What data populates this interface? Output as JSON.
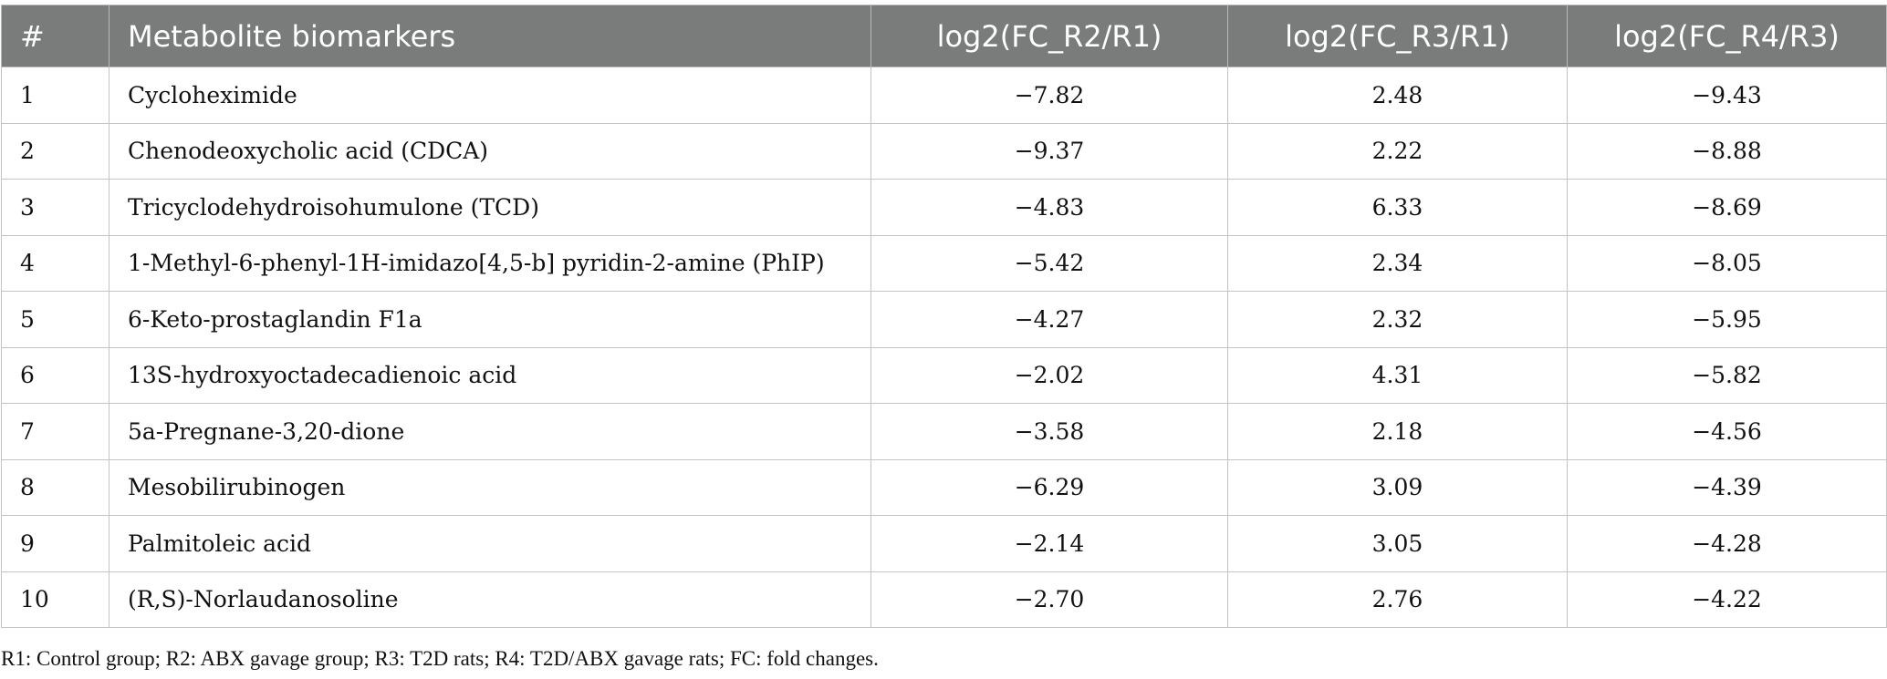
{
  "table": {
    "headers": [
      "#",
      "Metabolite biomarkers",
      "log2(FC_R2/R1)",
      "log2(FC_R3/R1)",
      "log2(FC_R4/R3)"
    ],
    "rows": [
      [
        "1",
        "Cycloheximide",
        "−7.82",
        "2.48",
        "−9.43"
      ],
      [
        "2",
        "Chenodeoxycholic acid (CDCA)",
        "−9.37",
        "2.22",
        "−8.88"
      ],
      [
        "3",
        "Tricyclodehydroisohumulone (TCD)",
        "−4.83",
        "6.33",
        "−8.69"
      ],
      [
        "4",
        "1-Methyl-6-phenyl-1H-imidazo[4,5-b] pyridin-2-amine (PhIP)",
        "−5.42",
        "2.34",
        "−8.05"
      ],
      [
        "5",
        "6-Keto-prostaglandin F1a",
        "−4.27",
        "2.32",
        "−5.95"
      ],
      [
        "6",
        "13S-hydroxyoctadecadienoic acid",
        "−2.02",
        "4.31",
        "−5.82"
      ],
      [
        "7",
        "5a-Pregnane-3,20-dione",
        "−3.58",
        "2.18",
        "−4.56"
      ],
      [
        "8",
        "Mesobilirubinogen",
        "−6.29",
        "3.09",
        "−4.39"
      ],
      [
        "9",
        "Palmitoleic acid",
        "−2.14",
        "3.05",
        "−4.28"
      ],
      [
        "10",
        "(R,S)-Norlaudanosoline",
        "−2.70",
        "2.76",
        "−4.22"
      ]
    ]
  },
  "footnote": "R1: Control group; R2: ABX gavage group; R3: T2D rats; R4: T2D/ABX gavage rats; FC: fold changes.",
  "colors": {
    "header_bg": "#7a7b7b",
    "header_text": "#ffffff",
    "border": "#c4c4c4"
  }
}
